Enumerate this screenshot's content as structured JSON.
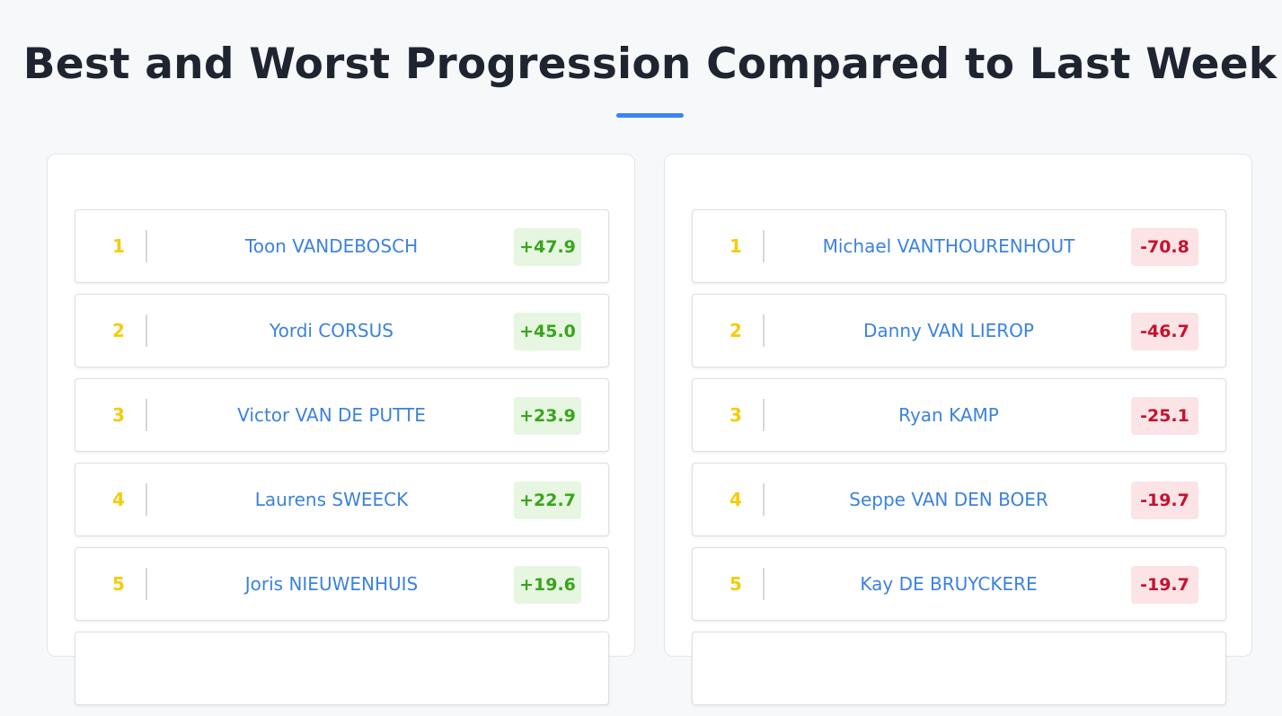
{
  "page": {
    "title": "Best and Worst Progression Compared to Last Week"
  },
  "colors": {
    "accent": "#3b82f6",
    "rank": "#f5cc0b",
    "name": "#3b82e0",
    "positive_text": "#3aa41d",
    "positive_bg": "#e6f6e1",
    "negative_text": "#c51230",
    "negative_bg": "#fbe3e6"
  },
  "best": [
    {
      "rank": "1",
      "name": "Toon VANDEBOSCH",
      "change": "+47.9"
    },
    {
      "rank": "2",
      "name": "Yordi CORSUS",
      "change": "+45.0"
    },
    {
      "rank": "3",
      "name": "Victor VAN DE PUTTE",
      "change": "+23.9"
    },
    {
      "rank": "4",
      "name": "Laurens SWEECK",
      "change": "+22.7"
    },
    {
      "rank": "5",
      "name": "Joris NIEUWENHUIS",
      "change": "+19.6"
    }
  ],
  "worst": [
    {
      "rank": "1",
      "name": "Michael VANTHOURENHOUT",
      "change": "-70.8"
    },
    {
      "rank": "2",
      "name": "Danny VAN LIEROP",
      "change": "-46.7"
    },
    {
      "rank": "3",
      "name": "Ryan KAMP",
      "change": "-25.1"
    },
    {
      "rank": "4",
      "name": "Seppe VAN DEN BOER",
      "change": "-19.7"
    },
    {
      "rank": "5",
      "name": "Kay DE BRUYCKERE",
      "change": "-19.7"
    }
  ]
}
